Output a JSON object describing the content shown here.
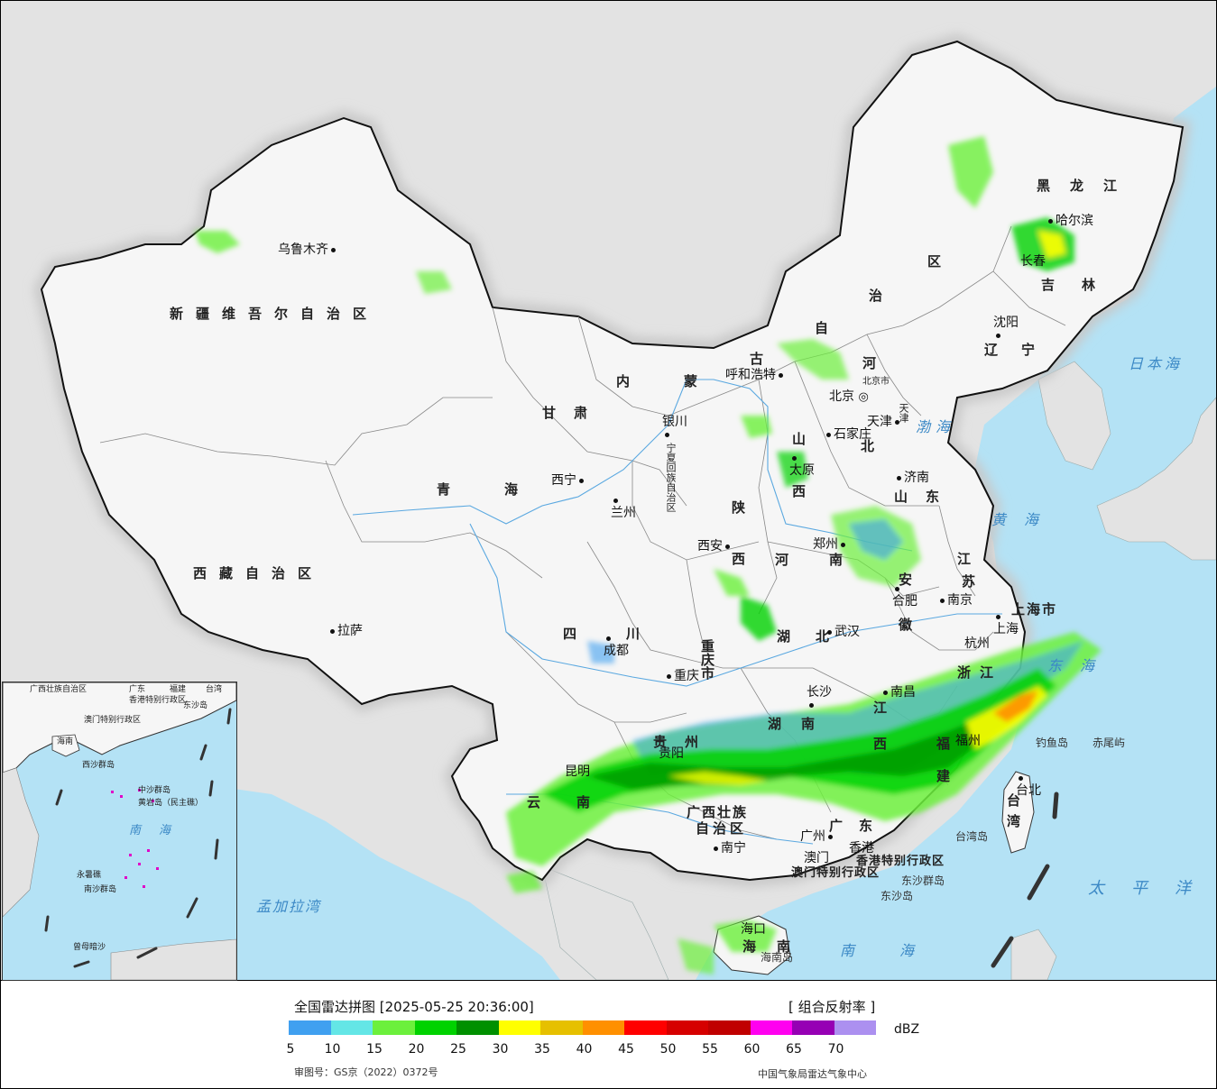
{
  "legend": {
    "title": "全国雷达拼图 [2025-05-25 20:36:00]",
    "product": "[ 组合反射率 ]",
    "unit": "dBZ",
    "colors": [
      "#40a0f0",
      "#64e6e6",
      "#6cf03c",
      "#00d200",
      "#009000",
      "#ffff00",
      "#e6c000",
      "#ff9000",
      "#ff0000",
      "#d60000",
      "#c00000",
      "#ff00f0",
      "#9600b4",
      "#ac90f0"
    ],
    "ticks": [
      "5",
      "10",
      "15",
      "20",
      "25",
      "30",
      "35",
      "40",
      "45",
      "50",
      "55",
      "60",
      "65",
      "70"
    ],
    "approval_no": "审图号：GS京（2022）0372号",
    "center": "中国气象局雷达气象中心"
  },
  "map": {
    "provinces": {
      "xinjiang": "新疆维吾尔自治区",
      "xizang": "西藏自治区",
      "qinghai": "青海",
      "gansu": "甘肃",
      "neimenggu_a": "内蒙",
      "neimenggu_b": "古",
      "neimenggu_c": "自",
      "neimenggu_d": "治",
      "neimenggu_e": "区",
      "heilongjiang": "黑龙江",
      "jilin": "吉林",
      "liaoning": "辽宁",
      "hebei_a": "河",
      "hebei_b": "北",
      "shanxi_a": "山",
      "shanxi_b": "西",
      "shaanxi_a": "陕",
      "shaanxi_b": "西",
      "shandong": "山东",
      "henan": "河南",
      "jiangsu_a": "江",
      "jiangsu_b": "苏",
      "anhui_a": "安",
      "anhui_b": "徽",
      "hubei_a": "湖",
      "hubei_b": "北",
      "sichuan": "四川",
      "chongqing": "重庆市",
      "guizhou": "贵州",
      "yunnan": "云南",
      "hunan_a": "湖",
      "hunan_b": "南",
      "jiangxi_a": "江",
      "jiangxi_b": "西",
      "zhejiang": "浙江",
      "fujian_a": "福",
      "fujian_b": "建",
      "guangxi_a": "广西壮族",
      "guangxi_b": "自治区",
      "guangdong": "广东",
      "hainan_a": "海",
      "hainan_b": "南",
      "taiwan_a": "台",
      "taiwan_b": "湾",
      "shanghai": "上海市",
      "ningxia": "宁夏回族自治区",
      "tianjin": "天津",
      "hk": "香港特别行政区",
      "macau": "澳门特别行政区"
    },
    "cities": {
      "urumqi": "乌鲁木齐",
      "lhasa": "拉萨",
      "xining": "西宁",
      "lanzhou": "兰州",
      "yinchuan": "银川",
      "hohhot": "呼和浩特",
      "beijing": "北京",
      "beijing_city": "北京市",
      "tianjin": "天津",
      "shijiazhuang": "石家庄",
      "taiyuan": "太原",
      "jinan": "济南",
      "zhengzhou": "郑州",
      "xian": "西安",
      "hefei": "合肥",
      "nanjing": "南京",
      "shanghai": "上海",
      "hangzhou": "杭州",
      "wuhan": "武汉",
      "chengdu": "成都",
      "chongqing": "重庆",
      "guiyang": "贵阳",
      "kunming": "昆明",
      "changsha": "长沙",
      "nanchang": "南昌",
      "fuzhou": "福州",
      "guangzhou": "广州",
      "nanning": "南宁",
      "haikou": "海口",
      "hongkong": "香港",
      "macau": "澳门",
      "taipei": "台北",
      "shenyang": "沈阳",
      "changchun": "长春",
      "harbin": "哈尔滨"
    },
    "seas": {
      "bohai": "渤海",
      "huanghai": "黄海",
      "donghai": "东海",
      "nanhai": "南海",
      "japan_sea": "日本海",
      "pacific": "太平洋",
      "bengal": "孟加拉湾"
    },
    "islands": {
      "diaoyu": "钓鱼岛",
      "chiwei": "赤尾屿",
      "taiwan_island": "台湾岛",
      "dongsha_group": "东沙群岛",
      "dongsha": "东沙岛",
      "hainan_island": "海南岛"
    },
    "inset": {
      "guangxi": "广西壮族自治区",
      "guangdong": "广东",
      "fujian": "福建",
      "taiwan": "台湾",
      "hk": "香港特别行政区",
      "macau": "澳门特别行政区",
      "dongsha": "东沙岛",
      "hainan": "海南",
      "xisha": "西沙群岛",
      "zhongsha": "中沙群岛",
      "huangyan": "黄岩岛（民主礁）",
      "nanhai": "南海",
      "yongshu": "永暑礁",
      "nansha": "南沙群岛",
      "zengmu": "曾母暗沙"
    }
  }
}
